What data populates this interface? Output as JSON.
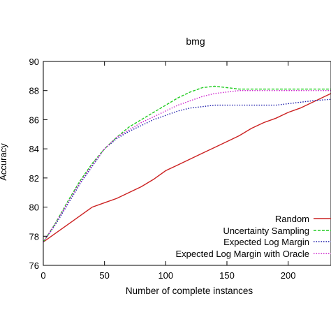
{
  "chart_data": {
    "type": "line",
    "title": "bmg",
    "xlabel": "Number of complete instances",
    "ylabel": "Accuracy",
    "xlim": [
      0,
      235
    ],
    "ylim": [
      76,
      90
    ],
    "xticks": [
      0,
      50,
      100,
      150,
      200
    ],
    "yticks": [
      76,
      78,
      80,
      82,
      84,
      86,
      88,
      90
    ],
    "grid": false,
    "legend_position": "bottom-right",
    "series": [
      {
        "name": "Random",
        "color": "#cc2222",
        "dash": "solid",
        "x": [
          0,
          10,
          20,
          30,
          40,
          50,
          60,
          70,
          80,
          90,
          100,
          110,
          120,
          130,
          140,
          150,
          160,
          170,
          180,
          190,
          200,
          210,
          220,
          235
        ],
        "y": [
          77.6,
          78.2,
          78.8,
          79.4,
          80.0,
          80.3,
          80.6,
          81.0,
          81.4,
          81.9,
          82.5,
          82.9,
          83.3,
          83.7,
          84.1,
          84.5,
          84.9,
          85.4,
          85.8,
          86.1,
          86.5,
          86.8,
          87.2,
          87.8
        ]
      },
      {
        "name": "Uncertainty Sampling",
        "color": "#22cc22",
        "dash": "dashed",
        "x": [
          0,
          10,
          20,
          30,
          40,
          50,
          60,
          70,
          80,
          90,
          100,
          110,
          120,
          130,
          140,
          150,
          160,
          170,
          180,
          200,
          220,
          235
        ],
        "y": [
          77.6,
          78.9,
          80.4,
          81.8,
          83.0,
          84.0,
          84.8,
          85.5,
          86.0,
          86.5,
          87.0,
          87.5,
          87.9,
          88.2,
          88.3,
          88.2,
          88.1,
          88.1,
          88.1,
          88.1,
          88.1,
          88.1
        ]
      },
      {
        "name": "Expected Log Margin",
        "color": "#1a1aaa",
        "dash": "dotted",
        "x": [
          0,
          10,
          20,
          30,
          40,
          50,
          60,
          70,
          80,
          90,
          100,
          110,
          120,
          130,
          140,
          150,
          160,
          170,
          180,
          190,
          200,
          210,
          220,
          235
        ],
        "y": [
          77.6,
          78.8,
          80.2,
          81.6,
          82.8,
          84.0,
          84.7,
          85.2,
          85.6,
          86.0,
          86.3,
          86.6,
          86.8,
          86.9,
          87.0,
          87.0,
          87.0,
          87.0,
          87.0,
          87.0,
          87.1,
          87.2,
          87.3,
          87.4
        ]
      },
      {
        "name": "Expected Log Margin with Oracle",
        "color": "#cc22cc",
        "dash": "dotted",
        "x": [
          0,
          10,
          20,
          30,
          40,
          50,
          60,
          70,
          80,
          90,
          100,
          110,
          120,
          130,
          140,
          150,
          160,
          170,
          180,
          200,
          220,
          235
        ],
        "y": [
          77.6,
          78.9,
          80.3,
          81.7,
          82.9,
          84.0,
          84.8,
          85.3,
          85.8,
          86.2,
          86.6,
          87.0,
          87.3,
          87.6,
          87.8,
          87.9,
          88.0,
          88.0,
          88.0,
          88.0,
          88.0,
          88.0
        ]
      }
    ]
  }
}
